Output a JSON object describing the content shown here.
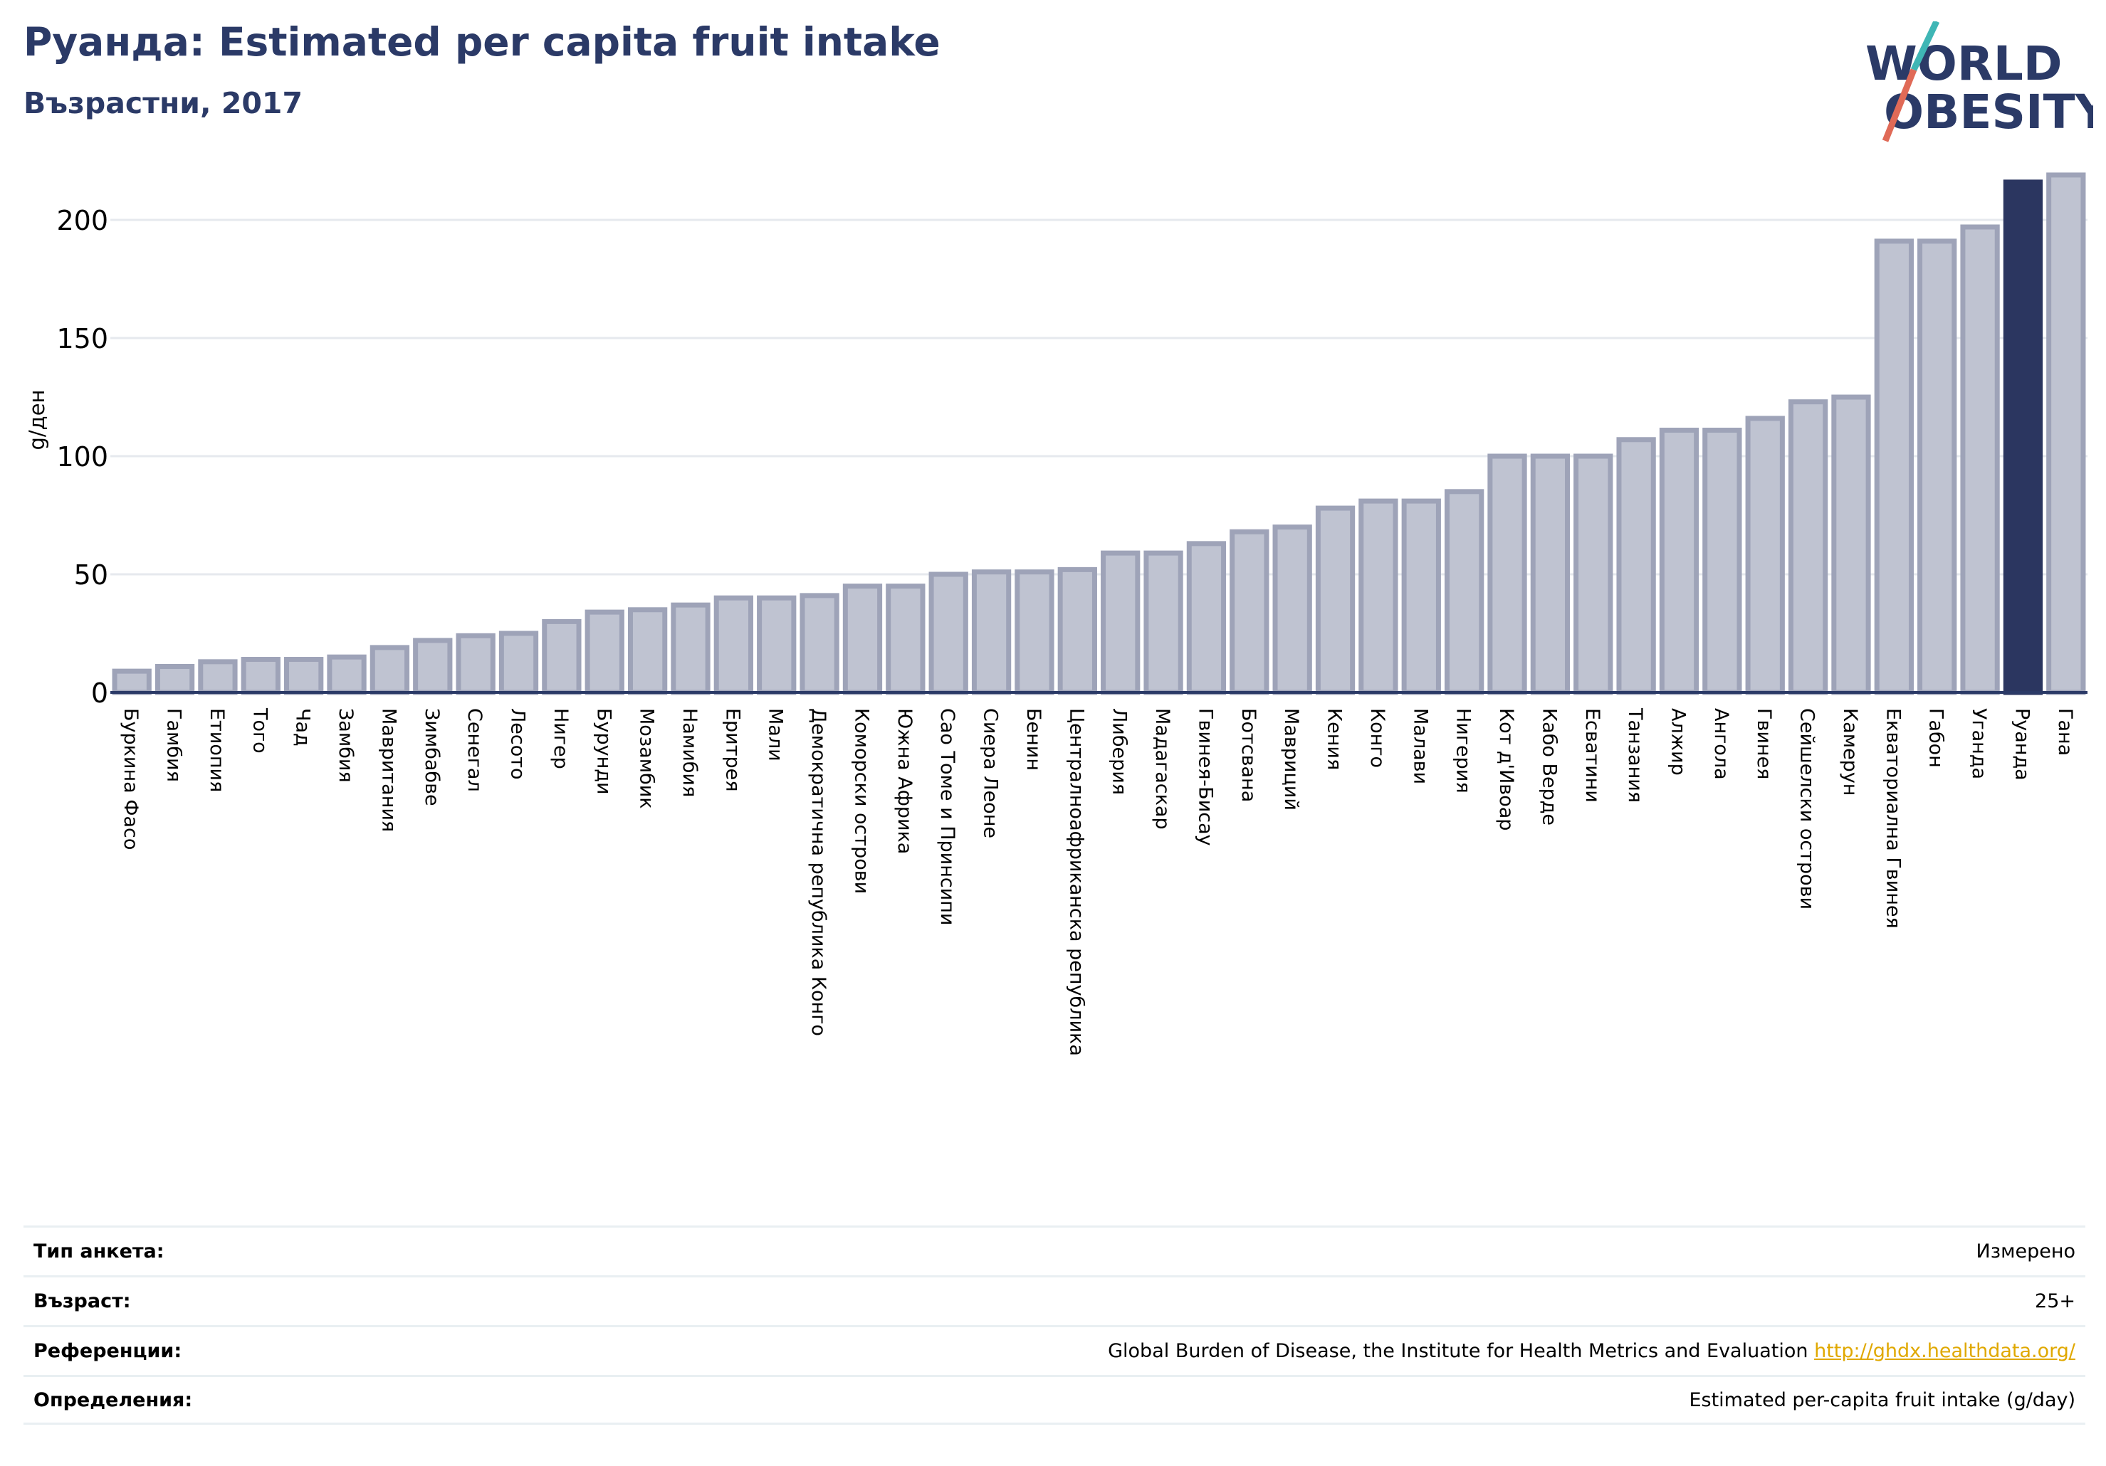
{
  "header": {
    "title": "Руанда: Estimated per capita fruit intake",
    "subtitle": "Възрастни, 2017"
  },
  "logo": {
    "line1": "WORLD",
    "line2": "OBESITY"
  },
  "colors": {
    "title": "#2b3a67",
    "bar_default": "#bfc3d1",
    "bar_default_edge": "#9ea3b8",
    "bar_highlight": "#2b3660",
    "axis": "#2b3a67",
    "grid": "#e6e9ee",
    "link": "#e0a800"
  },
  "chart_data": {
    "type": "bar",
    "ylabel": "g/ден",
    "ylim": [
      0,
      220
    ],
    "yticks": [
      0,
      50,
      100,
      150,
      200
    ],
    "grid": true,
    "highlight": "Руанда",
    "categories": [
      "Буркина Фасо",
      "Гамбия",
      "Етиопия",
      "Того",
      "Чад",
      "Замбия",
      "Мавритания",
      "Зимбабве",
      "Сенегал",
      "Лесото",
      "Нигер",
      "Бурунди",
      "Мозамбик",
      "Намибия",
      "Еритрея",
      "Мали",
      "Демократична република Конго",
      "Коморски острови",
      "Южна Африка",
      "Сао Томе и Принсипи",
      "Сиера Леоне",
      "Бенин",
      "Централноафриканска република",
      "Либерия",
      "Мадагаскар",
      "Гвинея-Бисау",
      "Ботсвана",
      "Мавриций",
      "Кения",
      "Конго",
      "Малави",
      "Нигерия",
      "Кот д'Ивоар",
      "Кабо Верде",
      "Есватини",
      "Танзания",
      "Алжир",
      "Ангола",
      "Гвинея",
      "Сейшелски острови",
      "Камерун",
      "Екваториална Гвинея",
      "Габон",
      "Уганда",
      "Руанда",
      "Гана"
    ],
    "values": [
      9,
      11,
      13,
      14,
      14,
      15,
      19,
      22,
      24,
      25,
      30,
      34,
      35,
      37,
      40,
      40,
      41,
      45,
      45,
      50,
      51,
      51,
      52,
      59,
      59,
      63,
      68,
      70,
      78,
      81,
      81,
      85,
      100,
      100,
      100,
      107,
      111,
      111,
      116,
      123,
      125,
      191,
      191,
      197,
      216,
      219
    ]
  },
  "meta": [
    {
      "label": "Тип анкета:",
      "value": "Измерено"
    },
    {
      "label": "Възраст:",
      "value": "25+"
    },
    {
      "label": "Референции:",
      "value": "Global Burden of Disease, the Institute for Health Metrics and Evaluation",
      "link": "http://ghdx.healthdata.org/"
    },
    {
      "label": "Определения:",
      "value": "Estimated per-capita fruit intake (g/day)"
    }
  ]
}
